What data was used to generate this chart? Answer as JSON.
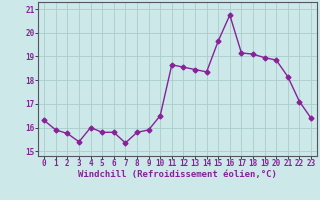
{
  "x": [
    0,
    1,
    2,
    3,
    4,
    5,
    6,
    7,
    8,
    9,
    10,
    11,
    12,
    13,
    14,
    15,
    16,
    17,
    18,
    19,
    20,
    21,
    22,
    23
  ],
  "y": [
    16.3,
    15.9,
    15.75,
    15.4,
    16.0,
    15.8,
    15.8,
    15.35,
    15.8,
    15.9,
    16.5,
    18.65,
    18.55,
    18.45,
    18.35,
    19.65,
    20.75,
    19.15,
    19.1,
    18.95,
    18.85,
    18.15,
    17.1,
    16.4
  ],
  "line_color": "#882299",
  "marker": "D",
  "marker_size": 2.5,
  "bg_color": "#cce8e8",
  "grid_color": "#aacccc",
  "xlabel": "Windchill (Refroidissement éolien,°C)",
  "xlim": [
    -0.5,
    23.5
  ],
  "ylim": [
    14.8,
    21.3
  ],
  "yticks": [
    15,
    16,
    17,
    18,
    19,
    20,
    21
  ],
  "xticks": [
    0,
    1,
    2,
    3,
    4,
    5,
    6,
    7,
    8,
    9,
    10,
    11,
    12,
    13,
    14,
    15,
    16,
    17,
    18,
    19,
    20,
    21,
    22,
    23
  ],
  "tick_fontsize": 5.5,
  "xlabel_fontsize": 6.5,
  "line_width": 1.0
}
